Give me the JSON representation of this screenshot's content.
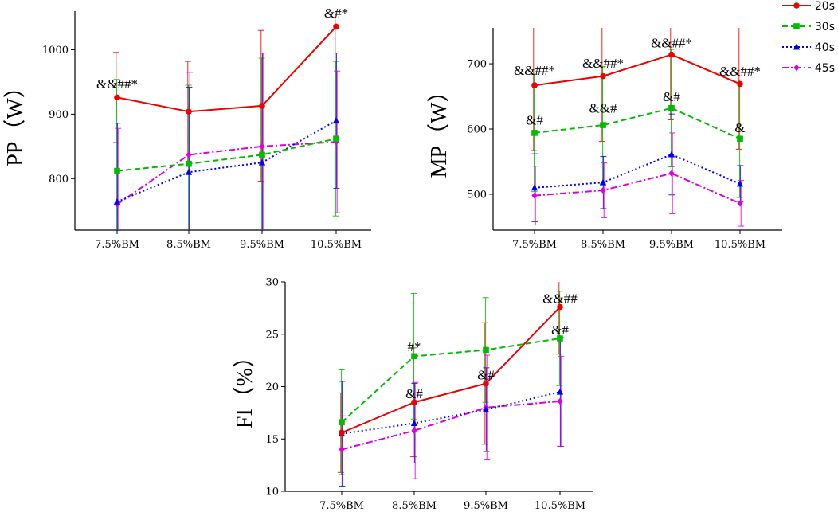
{
  "chart_data": [
    {
      "type": "line",
      "id": "pp",
      "ylabel": "PP（W）",
      "categories": [
        "7.5%BM",
        "8.5%BM",
        "9.5%BM",
        "10.5%BM"
      ],
      "ylim": [
        720,
        1060
      ],
      "yticks": [
        800,
        900,
        1000
      ],
      "series": [
        {
          "name": "20s",
          "values": [
            926,
            904,
            913,
            1036
          ],
          "err": [
            70,
            78,
            117,
            150
          ]
        },
        {
          "name": "30s",
          "values": [
            812,
            823,
            837,
            862
          ],
          "err": [
            142,
            122,
            150,
            120
          ]
        },
        {
          "name": "40s",
          "values": [
            764,
            810,
            825,
            890
          ],
          "err": [
            122,
            132,
            170,
            105
          ]
        },
        {
          "name": "45s",
          "values": [
            760,
            837,
            850,
            857
          ],
          "err": [
            118,
            128,
            145,
            110
          ]
        }
      ],
      "annotations": [
        {
          "category": "7.5%BM",
          "value": 940,
          "text": "&&##*"
        },
        {
          "category": "10.5%BM",
          "value": 1050,
          "text": "&#*"
        }
      ]
    },
    {
      "type": "line",
      "id": "mp",
      "ylabel": "MP（W）",
      "categories": [
        "7.5%BM",
        "8.5%BM",
        "9.5%BM",
        "10.5%BM"
      ],
      "ylim": [
        445,
        755
      ],
      "yticks": [
        500,
        600,
        700
      ],
      "series": [
        {
          "name": "20s",
          "values": [
            667,
            681,
            714,
            669
          ],
          "err": [
            100,
            100,
            100,
            100
          ]
        },
        {
          "name": "30s",
          "values": [
            594,
            606,
            632,
            585
          ],
          "err": [
            90,
            90,
            90,
            90
          ]
        },
        {
          "name": "40s",
          "values": [
            510,
            518,
            561,
            516
          ],
          "err": [
            52,
            40,
            62,
            28
          ]
        },
        {
          "name": "45s",
          "values": [
            498,
            506,
            532,
            486
          ],
          "err": [
            45,
            42,
            62,
            35
          ]
        }
      ],
      "annotations": [
        {
          "category": "7.5%BM",
          "value": 683,
          "text": "&&##*"
        },
        {
          "category": "8.5%BM",
          "value": 694,
          "text": "&&##*"
        },
        {
          "category": "9.5%BM",
          "value": 725,
          "text": "&&##*"
        },
        {
          "category": "10.5%BM",
          "value": 682,
          "text": "&&##*"
        },
        {
          "category": "7.5%BM",
          "value": 607,
          "text": "&#"
        },
        {
          "category": "8.5%BM",
          "value": 625,
          "text": "&&#"
        },
        {
          "category": "9.5%BM",
          "value": 643,
          "text": "&#"
        },
        {
          "category": "10.5%BM",
          "value": 595,
          "text": "&"
        }
      ]
    },
    {
      "type": "line",
      "id": "fi",
      "ylabel": "FI（%）",
      "categories": [
        "7.5%BM",
        "8.5%BM",
        "9.5%BM",
        "10.5%BM"
      ],
      "ylim": [
        10,
        30
      ],
      "yticks": [
        10,
        15,
        20,
        25,
        30
      ],
      "series": [
        {
          "name": "20s",
          "values": [
            15.6,
            18.5,
            20.3,
            27.6
          ],
          "err": [
            3.8,
            5.2,
            5.8,
            4.5
          ]
        },
        {
          "name": "30s",
          "values": [
            16.6,
            22.9,
            23.5,
            24.6
          ],
          "err": [
            5.0,
            6.0,
            5.0,
            4.5
          ]
        },
        {
          "name": "40s",
          "values": [
            15.5,
            16.5,
            17.8,
            19.5
          ],
          "err": [
            5.0,
            3.8,
            4.0,
            5.2
          ]
        },
        {
          "name": "45s",
          "values": [
            14.0,
            15.8,
            18.0,
            18.6
          ],
          "err": [
            3.2,
            4.6,
            5.0,
            4.3
          ]
        }
      ],
      "annotations": [
        {
          "category": "8.5%BM",
          "value": 18.9,
          "text": "&#"
        },
        {
          "category": "8.5%BM",
          "value": 23.4,
          "text": "#*"
        },
        {
          "category": "9.5%BM",
          "value": 20.7,
          "text": "&#"
        },
        {
          "category": "10.5%BM",
          "value": 28.0,
          "text": "&&##"
        },
        {
          "category": "10.5%BM",
          "value": 25.0,
          "text": "&#"
        }
      ]
    }
  ],
  "legend": [
    {
      "name": "20s",
      "color": "#ee0000",
      "marker": "circle",
      "dash": "solid"
    },
    {
      "name": "30s",
      "color": "#00bb00",
      "marker": "square",
      "dash": "dashed"
    },
    {
      "name": "40s",
      "color": "#0000ee",
      "marker": "triangle",
      "dash": "dotted"
    },
    {
      "name": "45s",
      "color": "#dd00dd",
      "marker": "diamond",
      "dash": "dashdot"
    }
  ]
}
